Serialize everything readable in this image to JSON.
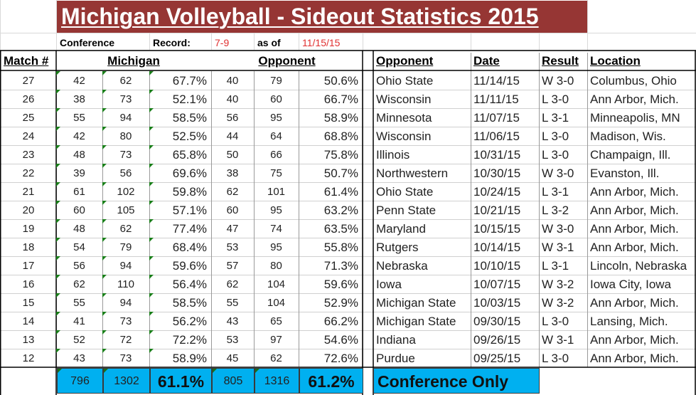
{
  "title": "Michigan Volleyball - Sideout Statistics 2015",
  "info": {
    "conference_label": "Conference",
    "record_label": "Record:",
    "record_value": "7-9",
    "asof_label": "as of",
    "asof_value": "11/15/15"
  },
  "headers": {
    "match": "Match #",
    "michigan": "Michigan",
    "opponent_group": "Opponent",
    "opponent": "Opponent",
    "date": "Date",
    "result": "Result",
    "location": "Location"
  },
  "matches": [
    {
      "match": "27",
      "m_a": "42",
      "m_b": "62",
      "m_pct": "67.7%",
      "o_a": "40",
      "o_b": "79",
      "o_pct": "50.6%",
      "opponent": "Ohio State",
      "date": "11/14/15",
      "result": "W 3-0",
      "location": "Columbus, Ohio"
    },
    {
      "match": "26",
      "m_a": "38",
      "m_b": "73",
      "m_pct": "52.1%",
      "o_a": "40",
      "o_b": "60",
      "o_pct": "66.7%",
      "opponent": "Wisconsin",
      "date": "11/11/15",
      "result": "L 3-0",
      "location": "Ann Arbor, Mich."
    },
    {
      "match": "25",
      "m_a": "55",
      "m_b": "94",
      "m_pct": "58.5%",
      "o_a": "56",
      "o_b": "95",
      "o_pct": "58.9%",
      "opponent": "Minnesota",
      "date": "11/07/15",
      "result": "L 3-1",
      "location": "Minneapolis, MN"
    },
    {
      "match": "24",
      "m_a": "42",
      "m_b": "80",
      "m_pct": "52.5%",
      "o_a": "44",
      "o_b": "64",
      "o_pct": "68.8%",
      "opponent": "Wisconsin",
      "date": "11/06/15",
      "result": "L 3-0",
      "location": "Madison, Wis."
    },
    {
      "match": "23",
      "m_a": "48",
      "m_b": "73",
      "m_pct": "65.8%",
      "o_a": "50",
      "o_b": "66",
      "o_pct": "75.8%",
      "opponent": "Illinois",
      "date": "10/31/15",
      "result": "L 3-0",
      "location": "Champaign, Ill."
    },
    {
      "match": "22",
      "m_a": "39",
      "m_b": "56",
      "m_pct": "69.6%",
      "o_a": "38",
      "o_b": "75",
      "o_pct": "50.7%",
      "opponent": "Northwestern",
      "date": "10/30/15",
      "result": "W 3-0",
      "location": "Evanston, Ill."
    },
    {
      "match": "21",
      "m_a": "61",
      "m_b": "102",
      "m_pct": "59.8%",
      "o_a": "62",
      "o_b": "101",
      "o_pct": "61.4%",
      "opponent": "Ohio State",
      "date": "10/24/15",
      "result": "L 3-1",
      "location": "Ann Arbor, Mich."
    },
    {
      "match": "20",
      "m_a": "60",
      "m_b": "105",
      "m_pct": "57.1%",
      "o_a": "60",
      "o_b": "95",
      "o_pct": "63.2%",
      "opponent": "Penn State",
      "date": "10/21/15",
      "result": "L 3-2",
      "location": "Ann Arbor, Mich."
    },
    {
      "match": "19",
      "m_a": "48",
      "m_b": "62",
      "m_pct": "77.4%",
      "o_a": "47",
      "o_b": "74",
      "o_pct": "63.5%",
      "opponent": "Maryland",
      "date": "10/15/15",
      "result": "W 3-0",
      "location": "Ann Arbor, Mich."
    },
    {
      "match": "18",
      "m_a": "54",
      "m_b": "79",
      "m_pct": "68.4%",
      "o_a": "53",
      "o_b": "95",
      "o_pct": "55.8%",
      "opponent": "Rutgers",
      "date": "10/14/15",
      "result": "W 3-1",
      "location": "Ann Arbor, Mich."
    },
    {
      "match": "17",
      "m_a": "56",
      "m_b": "94",
      "m_pct": "59.6%",
      "o_a": "57",
      "o_b": "80",
      "o_pct": "71.3%",
      "opponent": "Nebraska",
      "date": "10/10/15",
      "result": "L 3-1",
      "location": "Lincoln, Nebraska"
    },
    {
      "match": "16",
      "m_a": "62",
      "m_b": "110",
      "m_pct": "56.4%",
      "o_a": "62",
      "o_b": "104",
      "o_pct": "59.6%",
      "opponent": "Iowa",
      "date": "10/07/15",
      "result": "W 3-2",
      "location": "Iowa City, Iowa"
    },
    {
      "match": "15",
      "m_a": "55",
      "m_b": "94",
      "m_pct": "58.5%",
      "o_a": "55",
      "o_b": "104",
      "o_pct": "52.9%",
      "opponent": "Michigan State",
      "date": "10/03/15",
      "result": "W 3-2",
      "location": "Ann Arbor, Mich."
    },
    {
      "match": "14",
      "m_a": "41",
      "m_b": "73",
      "m_pct": "56.2%",
      "o_a": "43",
      "o_b": "65",
      "o_pct": "66.2%",
      "opponent": "Michigan State",
      "date": "09/30/15",
      "result": "L 3-0",
      "location": "Lansing, Mich."
    },
    {
      "match": "13",
      "m_a": "52",
      "m_b": "72",
      "m_pct": "72.2%",
      "o_a": "53",
      "o_b": "97",
      "o_pct": "54.6%",
      "opponent": "Indiana",
      "date": "09/26/15",
      "result": "W 3-1",
      "location": "Ann Arbor, Mich."
    },
    {
      "match": "12",
      "m_a": "43",
      "m_b": "73",
      "m_pct": "58.9%",
      "o_a": "45",
      "o_b": "62",
      "o_pct": "72.6%",
      "opponent": "Purdue",
      "date": "09/25/15",
      "result": "L 3-0",
      "location": "Ann Arbor, Mich."
    }
  ],
  "totals": {
    "m_a": "796",
    "m_b": "1302",
    "m_pct": "61.1%",
    "o_a": "805",
    "o_b": "1316",
    "o_pct": "61.2%",
    "label": "Conference Only"
  },
  "colors": {
    "title_bg": "#963634",
    "totals_bg": "#00b0f0",
    "red_text": "#e03030",
    "comment_marker": "#1a7f1a"
  }
}
